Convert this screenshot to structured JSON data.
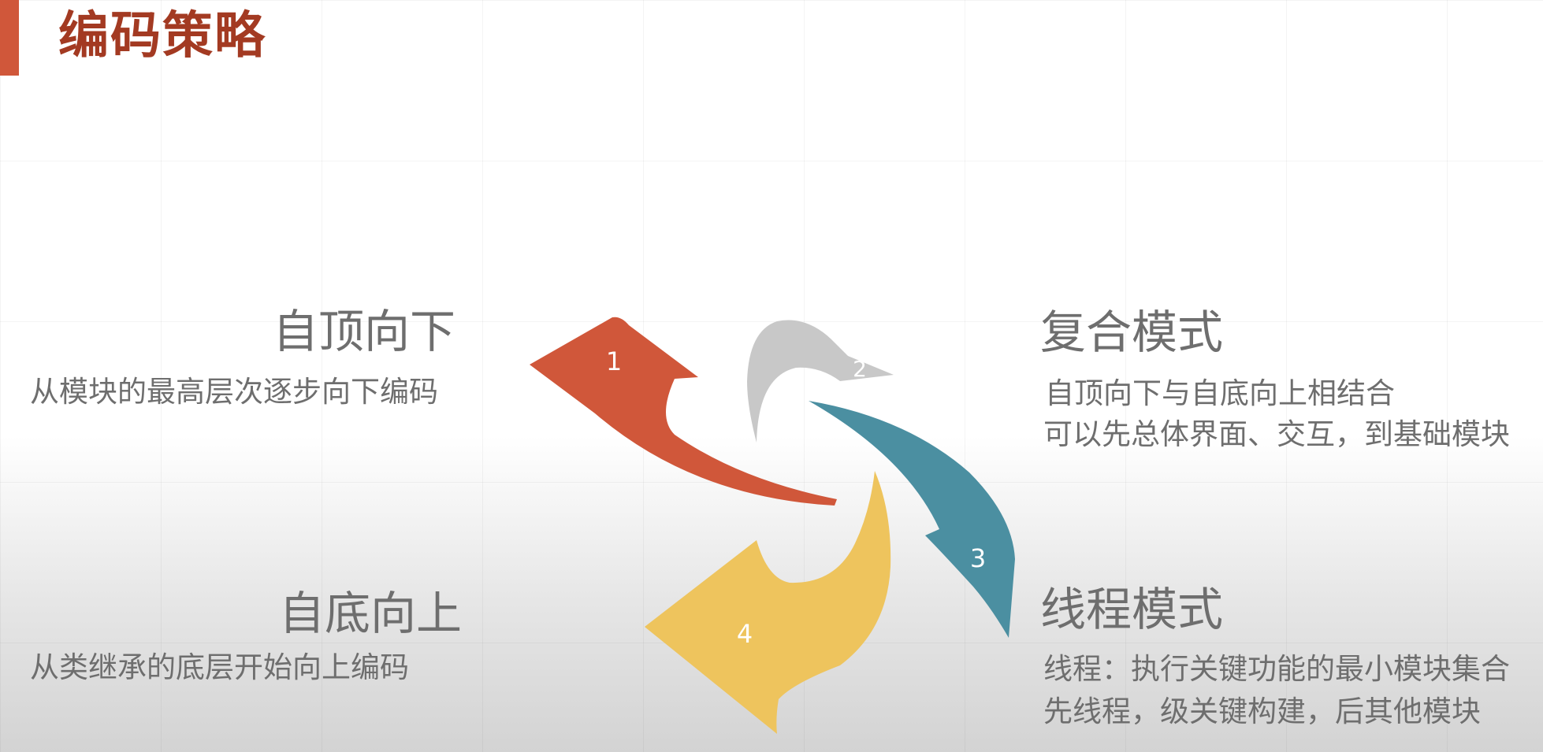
{
  "title": "编码策略",
  "colors": {
    "accent": "#d0573a",
    "title": "#a33a22",
    "arrow_1": "#d0573a",
    "arrow_2": "#c8c8c8",
    "arrow_3": "#4b8fa1",
    "arrow_4": "#eec45d"
  },
  "strategies": {
    "top_down": {
      "number": "1",
      "heading": "自顶向下",
      "description": "从模块的最高层次逐步向下编码"
    },
    "composite": {
      "number": "2",
      "heading": "复合模式",
      "description_lines": [
        "自顶向下与自底向上相结合",
        "可以先总体界面、交互，到基础模块"
      ]
    },
    "thread": {
      "number": "3",
      "heading": "线程模式",
      "description_lines": [
        "线程：执行关键功能的最小模块集合",
        "先线程，级关键构建，后其他模块"
      ]
    },
    "bottom_up": {
      "number": "4",
      "heading": "自底向上",
      "description": "从类继承的底层开始向上编码"
    }
  }
}
